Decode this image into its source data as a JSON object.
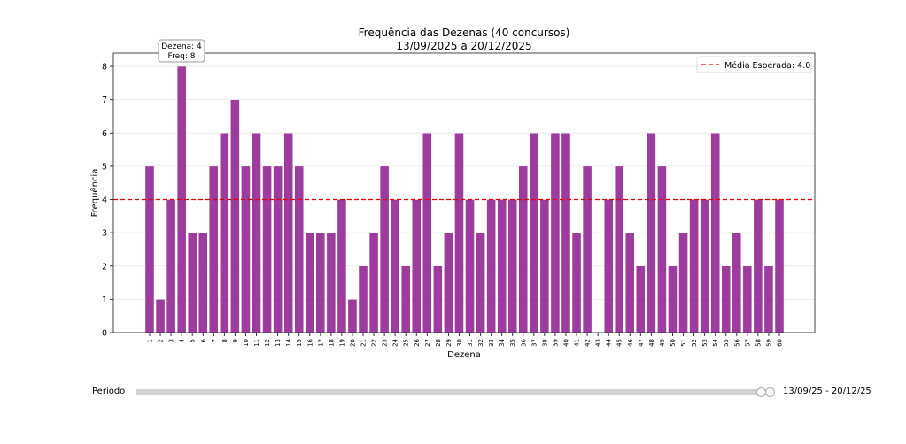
{
  "chart_data": {
    "type": "bar",
    "title": "Frequência das Dezenas (40 concursos)",
    "subtitle": "13/09/2025 a 20/12/2025",
    "xlabel": "Dezena",
    "ylabel": "Frequência",
    "categories": [
      "1",
      "2",
      "3",
      "4",
      "5",
      "6",
      "7",
      "8",
      "9",
      "10",
      "11",
      "12",
      "13",
      "14",
      "15",
      "16",
      "17",
      "18",
      "19",
      "20",
      "21",
      "22",
      "23",
      "24",
      "25",
      "26",
      "27",
      "28",
      "29",
      "30",
      "31",
      "32",
      "33",
      "34",
      "35",
      "36",
      "37",
      "38",
      "39",
      "40",
      "41",
      "42",
      "43",
      "44",
      "45",
      "46",
      "47",
      "48",
      "49",
      "50",
      "51",
      "52",
      "53",
      "54",
      "55",
      "56",
      "57",
      "58",
      "59",
      "60"
    ],
    "values": [
      5,
      1,
      4,
      8,
      3,
      3,
      5,
      6,
      7,
      5,
      6,
      5,
      5,
      6,
      5,
      3,
      3,
      3,
      4,
      1,
      2,
      3,
      5,
      4,
      2,
      4,
      6,
      2,
      3,
      6,
      4,
      3,
      4,
      4,
      4,
      5,
      6,
      4,
      6,
      6,
      3,
      5,
      0,
      4,
      5,
      3,
      2,
      6,
      5,
      2,
      3,
      4,
      4,
      6,
      2,
      3,
      2,
      4,
      2,
      4
    ],
    "ylim": [
      0,
      8.4
    ],
    "yticks": [
      "0",
      "1",
      "2",
      "3",
      "4",
      "5",
      "6",
      "7",
      "8"
    ],
    "grid": "horizontal",
    "bar_color": "#8b1a8b",
    "reference_line": {
      "value": 4.0,
      "label": "Média Esperada: 4.0",
      "color": "#e00000",
      "style": "dashed"
    },
    "legend_position": "top-right",
    "tooltip": {
      "line1": "Dezena: 4",
      "line2": "Freq: 8"
    }
  },
  "slider": {
    "label": "Período",
    "value_text": "13/09/25 - 20/12/25",
    "range_fraction": [
      0.993,
      1.0
    ]
  }
}
